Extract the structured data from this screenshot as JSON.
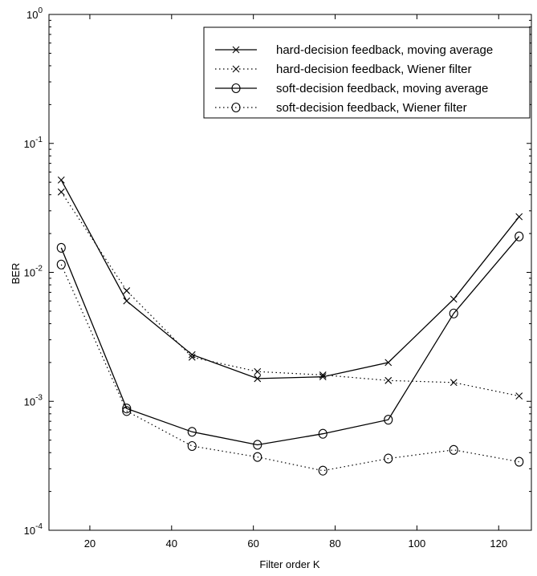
{
  "chart_data": {
    "type": "line",
    "title": "",
    "xlabel": "Filter order K",
    "ylabel": "BER",
    "xlim": [
      10,
      128
    ],
    "ylim": [
      0.0001,
      1
    ],
    "yscale": "log",
    "grid": false,
    "legend_position": "top-right",
    "x": [
      13,
      29,
      45,
      61,
      77,
      93,
      109,
      125
    ],
    "x_ticks": [
      {
        "value": 20,
        "label": "20"
      },
      {
        "value": 40,
        "label": "40"
      },
      {
        "value": 60,
        "label": "60"
      },
      {
        "value": 80,
        "label": "80"
      },
      {
        "value": 100,
        "label": "100"
      },
      {
        "value": 120,
        "label": "120"
      }
    ],
    "y_ticks": [
      {
        "value": 0.0001,
        "base": "10",
        "exp": "-4"
      },
      {
        "value": 0.001,
        "base": "10",
        "exp": "-3"
      },
      {
        "value": 0.01,
        "base": "10",
        "exp": "-2"
      },
      {
        "value": 0.1,
        "base": "10",
        "exp": "-1"
      },
      {
        "value": 1,
        "base": "10",
        "exp": "0"
      }
    ],
    "series": [
      {
        "name": "hard-decision feedback, moving average",
        "line": "solid",
        "marker": "x",
        "x": [
          13,
          29,
          45,
          61,
          77,
          93,
          109,
          125
        ],
        "values": [
          0.052,
          0.006,
          0.0023,
          0.0015,
          0.00155,
          0.002,
          0.0062,
          0.027
        ]
      },
      {
        "name": "hard-decision feedback, Wiener filter",
        "line": "dotted",
        "marker": "x",
        "x": [
          13,
          29,
          45,
          61,
          77,
          93,
          109,
          125
        ],
        "values": [
          0.042,
          0.0072,
          0.0022,
          0.0017,
          0.0016,
          0.00145,
          0.0014,
          0.0011
        ]
      },
      {
        "name": "soft-decision feedback, moving average",
        "line": "solid",
        "marker": "o",
        "x": [
          13,
          29,
          45,
          61,
          77,
          93,
          109,
          125
        ],
        "values": [
          0.0155,
          0.00088,
          0.00058,
          0.00046,
          0.00056,
          0.00072,
          0.0048,
          0.019
        ]
      },
      {
        "name": "soft-decision feedback, Wiener filter",
        "line": "dotted",
        "marker": "o",
        "x": [
          13,
          29,
          45,
          61,
          77,
          93,
          109,
          125
        ],
        "values": [
          0.0115,
          0.00084,
          0.00045,
          0.00037,
          0.00029,
          0.00036,
          0.00042,
          0.00034
        ]
      }
    ]
  }
}
